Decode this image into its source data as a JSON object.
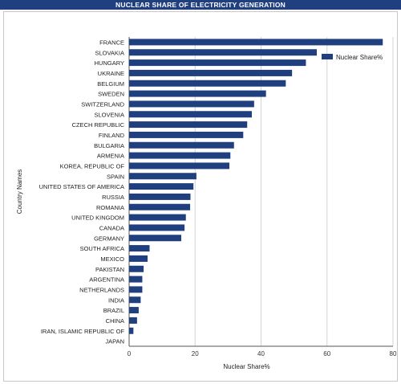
{
  "title": "NUCLEAR SHARE OF ELECTRICITY GENERATION",
  "chart_data": {
    "type": "bar",
    "orientation": "horizontal",
    "xlabel": "Nuclear Share%",
    "ylabel": "Country Names",
    "xlim": [
      0,
      80
    ],
    "xticks": [
      0,
      20,
      40,
      60,
      80
    ],
    "grid": true,
    "legend_position": "top-right",
    "bar_color": "#1f3f7f",
    "series": [
      {
        "name": "Nuclear Share%",
        "categories": [
          "FRANCE",
          "SLOVAKIA",
          "HUNGARY",
          "UKRAINE",
          "BELGIUM",
          "SWEDEN",
          "SWITZERLAND",
          "SLOVENIA",
          "CZECH REPUBLIC",
          "FINLAND",
          "BULGARIA",
          "ARMENIA",
          "KOREA, REPUBLIC OF",
          "SPAIN",
          "UNITED STATES OF AMERICA",
          "RUSSIA",
          "ROMANIA",
          "UNITED KINGDOM",
          "CANADA",
          "GERMANY",
          "SOUTH AFRICA",
          "MEXICO",
          "PAKISTAN",
          "ARGENTINA",
          "NETHERLANDS",
          "INDIA",
          "BRAZIL",
          "CHINA",
          "IRAN, ISLAMIC REPUBLIC OF",
          "JAPAN"
        ],
        "values": [
          76.9,
          56.9,
          53.6,
          49.4,
          47.5,
          41.5,
          37.9,
          37.2,
          35.8,
          34.6,
          31.8,
          30.7,
          30.4,
          20.4,
          19.5,
          18.6,
          18.5,
          17.2,
          16.8,
          15.8,
          6.2,
          5.6,
          4.4,
          4.0,
          4.0,
          3.5,
          2.9,
          2.4,
          1.3,
          0.0
        ]
      }
    ]
  }
}
